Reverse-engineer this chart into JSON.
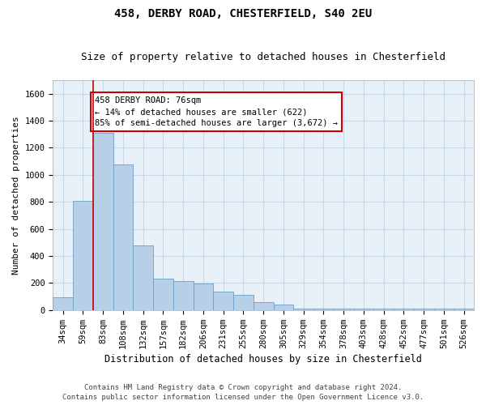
{
  "title1": "458, DERBY ROAD, CHESTERFIELD, S40 2EU",
  "title2": "Size of property relative to detached houses in Chesterfield",
  "xlabel": "Distribution of detached houses by size in Chesterfield",
  "ylabel": "Number of detached properties",
  "categories": [
    "34sqm",
    "59sqm",
    "83sqm",
    "108sqm",
    "132sqm",
    "157sqm",
    "182sqm",
    "206sqm",
    "231sqm",
    "255sqm",
    "280sqm",
    "305sqm",
    "329sqm",
    "354sqm",
    "378sqm",
    "403sqm",
    "428sqm",
    "452sqm",
    "477sqm",
    "501sqm",
    "526sqm"
  ],
  "values": [
    95,
    810,
    1310,
    1080,
    480,
    230,
    215,
    195,
    135,
    115,
    60,
    40,
    8,
    8,
    8,
    8,
    8,
    8,
    8,
    8,
    8
  ],
  "bar_color": "#b8cfe8",
  "bar_edge_color": "#6b9fc8",
  "grid_color": "#c8d8ea",
  "background_color": "#e8f0f8",
  "vline_x": 1.5,
  "vline_color": "#cc0000",
  "annotation_text": "458 DERBY ROAD: 76sqm\n← 14% of detached houses are smaller (622)\n85% of semi-detached houses are larger (3,672) →",
  "annotation_box_color": "#ffffff",
  "annotation_box_edge": "#cc0000",
  "ylim": [
    0,
    1700
  ],
  "yticks": [
    0,
    200,
    400,
    600,
    800,
    1000,
    1200,
    1400,
    1600
  ],
  "footer1": "Contains HM Land Registry data © Crown copyright and database right 2024.",
  "footer2": "Contains public sector information licensed under the Open Government Licence v3.0.",
  "title1_fontsize": 10,
  "title2_fontsize": 9,
  "xlabel_fontsize": 8.5,
  "ylabel_fontsize": 8,
  "tick_fontsize": 7.5,
  "annotation_fontsize": 7.5,
  "footer_fontsize": 6.5
}
